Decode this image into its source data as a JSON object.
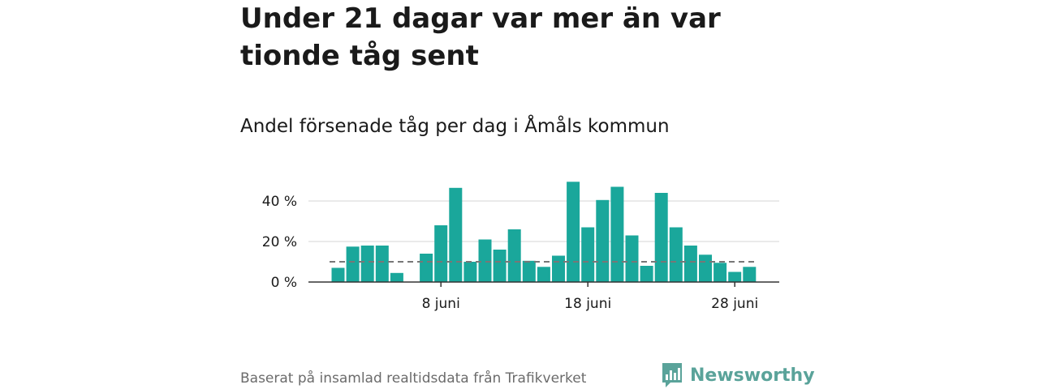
{
  "headline": "Under 21 dagar var mer än var tionde tåg sent",
  "subtitle": "Andel försenade tåg per dag i Åmåls kommun",
  "source": "Baserat på insamlad realtidsdata från Trafikverket",
  "brand": "Newsworthy",
  "colors": {
    "bar": "#1aa79b",
    "grid": "#dddddd",
    "axis": "#333333",
    "reference_line": "#777777",
    "brand": "#5aa39a"
  },
  "chart_data": {
    "type": "bar",
    "title": "Andel försenade tåg per dag i Åmåls kommun",
    "xlabel": "",
    "ylabel": "",
    "unit": "%",
    "ylim": [
      0,
      50
    ],
    "yticks": [
      {
        "value": 0,
        "label": "0 %"
      },
      {
        "value": 20,
        "label": "20 %"
      },
      {
        "value": 40,
        "label": "40 %"
      }
    ],
    "xticks": [
      {
        "day": 8,
        "label": "8 juni"
      },
      {
        "day": 18,
        "label": "18 juni"
      },
      {
        "day": 28,
        "label": "28 juni"
      }
    ],
    "x": [
      1,
      2,
      3,
      4,
      5,
      6,
      7,
      8,
      9,
      10,
      11,
      12,
      13,
      14,
      15,
      16,
      17,
      18,
      19,
      20,
      21,
      22,
      23,
      24,
      25,
      26,
      27,
      28,
      29,
      30
    ],
    "values": [
      7,
      17.5,
      18,
      18,
      4.5,
      0,
      14,
      28,
      46.5,
      10,
      21,
      16,
      26,
      10.5,
      7.5,
      13,
      49.5,
      27,
      40.5,
      47,
      23,
      8,
      44,
      27,
      18,
      13.5,
      9.5,
      5,
      7.5,
      null
    ],
    "reference_line": {
      "value": 10,
      "style": "dashed"
    },
    "grid": true
  }
}
